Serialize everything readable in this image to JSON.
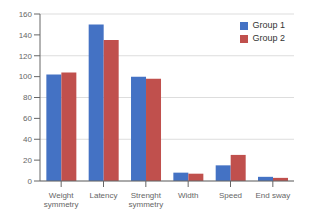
{
  "chart_data": {
    "type": "bar",
    "categories": [
      "Weight\nsymmetry",
      "Latency",
      "Strenght\nsymmetry",
      "Width",
      "Speed",
      "End sway"
    ],
    "series": [
      {
        "name": "Group 1",
        "color": "#4472C4",
        "values": [
          102,
          150,
          100,
          8,
          15,
          4
        ]
      },
      {
        "name": "Group 2",
        "color": "#C0504D",
        "values": [
          104,
          135,
          98,
          7,
          25,
          3
        ]
      }
    ],
    "ylim": [
      0,
      160
    ],
    "yticks": [
      0,
      20,
      40,
      60,
      80,
      100,
      120,
      140,
      160
    ],
    "grid": true,
    "legend": "upper right"
  }
}
